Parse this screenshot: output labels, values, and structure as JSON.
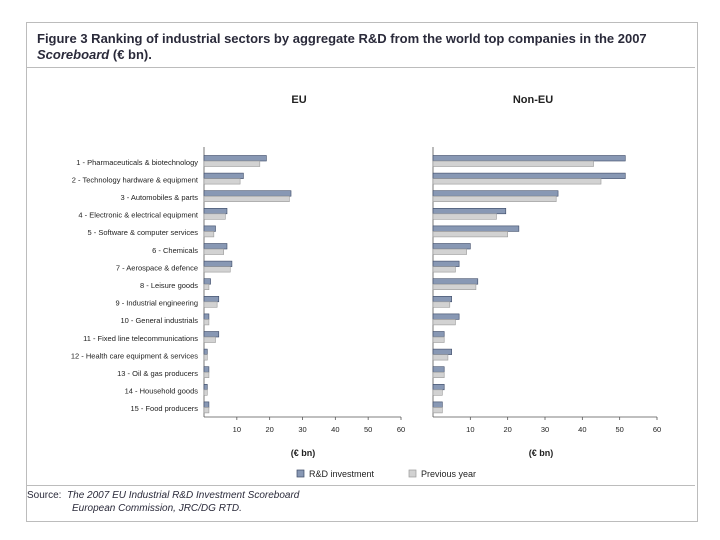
{
  "header": {
    "title_line1": "Figure 3 Ranking of industrial sectors by aggregate R&D from the world top companies in the 2007",
    "title_line2_italic": "Scoreboard",
    "title_line2_rest": " (€ bn)."
  },
  "source": {
    "label": "Source:",
    "line1": "The 2007 EU Industrial R&D Investment Scoreboard",
    "line2": "European Commission, JRC/DG RTD."
  },
  "chart_data": {
    "type": "bar",
    "orientation": "horizontal",
    "categories": [
      "1 - Pharmaceuticals & biotechnology",
      "2 - Technology hardware & equipment",
      "3 - Automobiles & parts",
      "4 - Electronic & electrical equipment",
      "5 - Software & computer services",
      "6 - Chemicals",
      "7 - Aerospace & defence",
      "8 - Leisure goods",
      "9 - Industrial engineering",
      "10 - General industrials",
      "11 - Fixed line telecommunications",
      "12 - Health care equipment & services",
      "13 - Oil & gas producers",
      "14 - Household goods",
      "15 - Food producers"
    ],
    "panels": [
      {
        "title": "EU",
        "xlabel": "(€ bn)",
        "xlim": [
          0,
          60
        ],
        "xticks": [
          "10",
          "20",
          "30",
          "40",
          "50",
          "60"
        ],
        "series": [
          {
            "name": "R&D investment",
            "values": [
              19,
              12,
              26.5,
              7,
              3.5,
              7,
              8.5,
              2,
              4.5,
              1.5,
              4.5,
              1,
              1.5,
              1,
              1.5
            ]
          },
          {
            "name": "Previous year",
            "values": [
              17,
              11,
              26,
              6.5,
              3,
              6,
              8,
              1.5,
              4,
              1.5,
              3.5,
              1,
              1.5,
              1,
              1.5
            ]
          }
        ]
      },
      {
        "title": "Non-EU",
        "xlabel": "(€ bn)",
        "xlim": [
          0,
          60
        ],
        "xticks": [
          "10",
          "20",
          "30",
          "40",
          "50",
          "60"
        ],
        "series": [
          {
            "name": "R&D investment",
            "values": [
              51.5,
              51.5,
              33.5,
              19.5,
              23,
              10,
              7,
              12,
              5,
              7,
              3,
              5,
              3,
              3,
              2.5
            ]
          },
          {
            "name": "Previous year",
            "values": [
              43,
              45,
              33,
              17,
              20,
              9,
              6,
              11.5,
              4.5,
              6,
              3,
              4,
              3,
              2.5,
              2.5
            ]
          }
        ]
      }
    ],
    "legend": {
      "position": "bottom",
      "items": [
        {
          "name": "R&D investment",
          "color": "#8898b4"
        },
        {
          "name": "Previous year",
          "color": "#d2d2d2"
        }
      ]
    }
  }
}
